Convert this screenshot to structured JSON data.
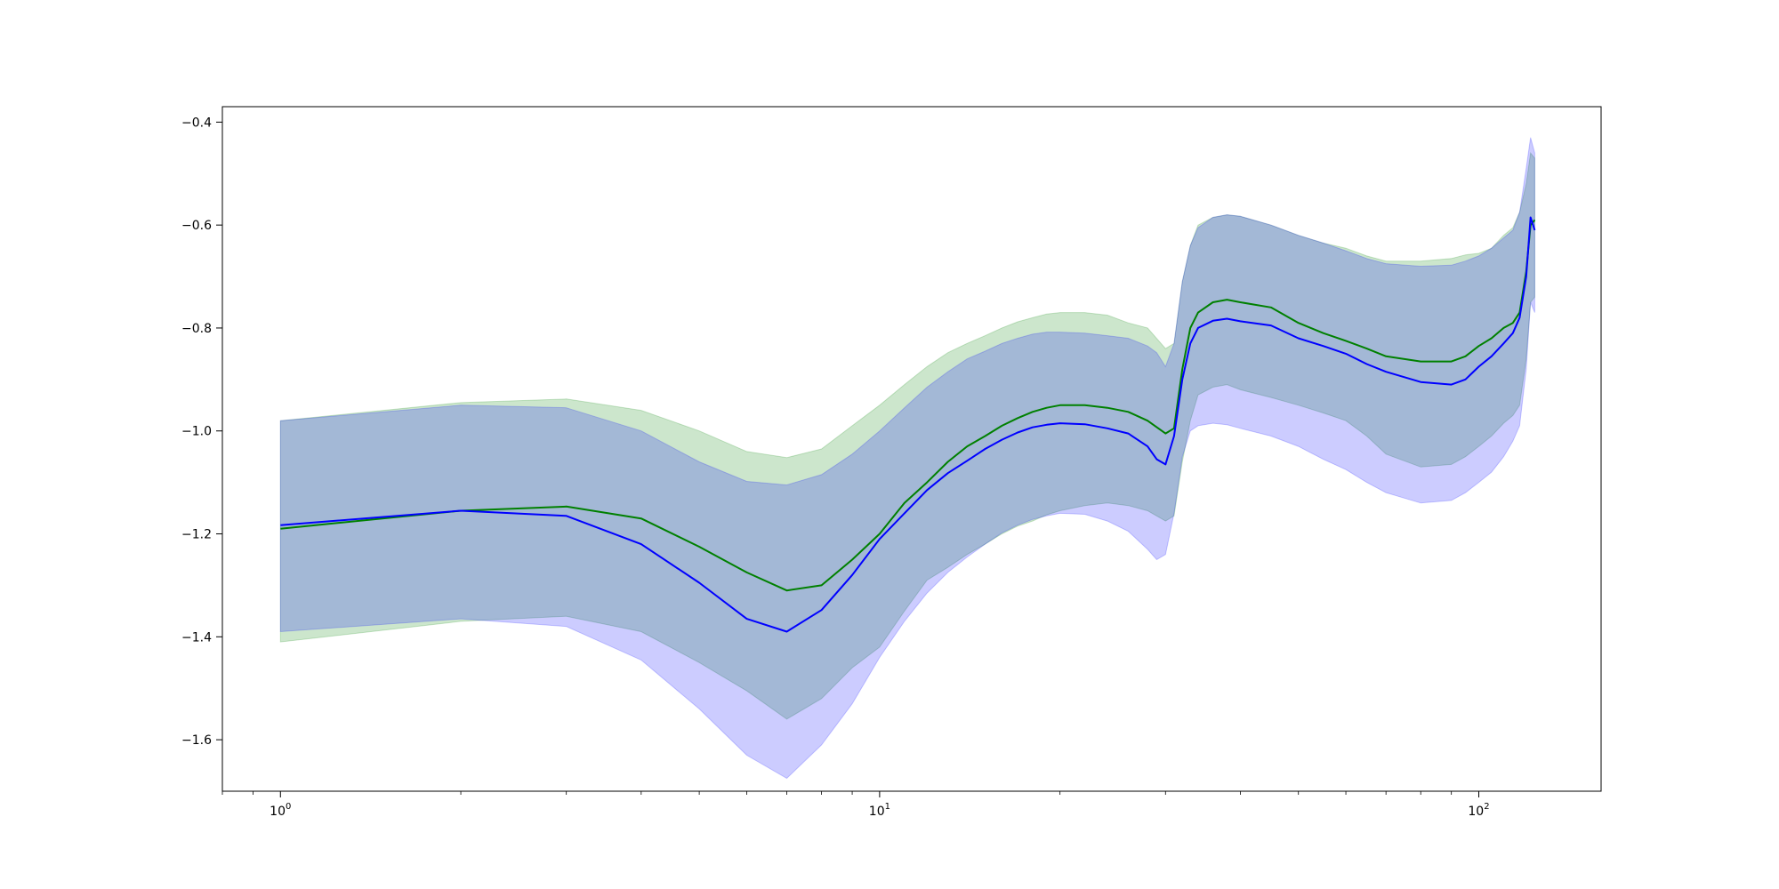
{
  "chart_data": {
    "type": "line",
    "title": "",
    "xlabel": "",
    "ylabel": "",
    "xscale": "log",
    "xlim": [
      0.8,
      160
    ],
    "ylim": [
      -1.7,
      -0.37
    ],
    "grid": false,
    "legend": "none",
    "x_ticks": [
      {
        "base": "10",
        "exp": "0",
        "value": 1
      },
      {
        "base": "10",
        "exp": "1",
        "value": 10
      },
      {
        "base": "10",
        "exp": "2",
        "value": 100
      }
    ],
    "y_ticks": [
      {
        "label": "−0.4",
        "value": -0.4
      },
      {
        "label": "−0.6",
        "value": -0.6
      },
      {
        "label": "−0.8",
        "value": -0.8
      },
      {
        "label": "−1.0",
        "value": -1.0
      },
      {
        "label": "−1.2",
        "value": -1.2
      },
      {
        "label": "−1.4",
        "value": -1.4
      },
      {
        "label": "−1.6",
        "value": -1.6
      }
    ],
    "series": [
      {
        "color": "#008000",
        "fill_color": "#008000",
        "fill_opacity": 0.2,
        "x": [
          1,
          2,
          3,
          4,
          5,
          6,
          7,
          8,
          9,
          10,
          11,
          12,
          13,
          14,
          15,
          16,
          17,
          18,
          19,
          20,
          22,
          24,
          26,
          28,
          30,
          31,
          32,
          33,
          34,
          36,
          38,
          40,
          45,
          50,
          55,
          60,
          65,
          70,
          80,
          90,
          95,
          100,
          105,
          110,
          114,
          117,
          120,
          122,
          124
        ],
        "y": [
          -1.19,
          -1.155,
          -1.147,
          -1.17,
          -1.225,
          -1.275,
          -1.31,
          -1.3,
          -1.25,
          -1.2,
          -1.14,
          -1.1,
          -1.06,
          -1.03,
          -1.01,
          -0.99,
          -0.975,
          -0.963,
          -0.955,
          -0.95,
          -0.95,
          -0.955,
          -0.963,
          -0.98,
          -1.005,
          -0.995,
          -0.88,
          -0.8,
          -0.77,
          -0.75,
          -0.745,
          -0.75,
          -0.76,
          -0.79,
          -0.81,
          -0.825,
          -0.84,
          -0.855,
          -0.865,
          -0.865,
          -0.855,
          -0.835,
          -0.82,
          -0.8,
          -0.79,
          -0.77,
          -0.69,
          -0.6,
          -0.59
        ],
        "upper": [
          -0.98,
          -0.945,
          -0.938,
          -0.96,
          -1.0,
          -1.04,
          -1.052,
          -1.035,
          -0.99,
          -0.95,
          -0.91,
          -0.875,
          -0.848,
          -0.83,
          -0.815,
          -0.8,
          -0.788,
          -0.78,
          -0.773,
          -0.77,
          -0.77,
          -0.775,
          -0.79,
          -0.8,
          -0.84,
          -0.83,
          -0.71,
          -0.64,
          -0.6,
          -0.585,
          -0.58,
          -0.583,
          -0.6,
          -0.62,
          -0.635,
          -0.645,
          -0.66,
          -0.67,
          -0.67,
          -0.665,
          -0.658,
          -0.655,
          -0.645,
          -0.62,
          -0.605,
          -0.575,
          -0.52,
          -0.46,
          -0.47
        ],
        "lower": [
          -1.41,
          -1.37,
          -1.36,
          -1.39,
          -1.45,
          -1.505,
          -1.56,
          -1.52,
          -1.46,
          -1.42,
          -1.35,
          -1.29,
          -1.265,
          -1.24,
          -1.22,
          -1.2,
          -1.185,
          -1.175,
          -1.163,
          -1.155,
          -1.145,
          -1.14,
          -1.145,
          -1.155,
          -1.175,
          -1.165,
          -1.06,
          -0.98,
          -0.93,
          -0.915,
          -0.91,
          -0.92,
          -0.935,
          -0.95,
          -0.965,
          -0.98,
          -1.01,
          -1.045,
          -1.07,
          -1.065,
          -1.05,
          -1.03,
          -1.01,
          -0.985,
          -0.97,
          -0.95,
          -0.86,
          -0.75,
          -0.74
        ]
      },
      {
        "color": "#0000ff",
        "fill_color": "#0000ff",
        "fill_opacity": 0.2,
        "x": [
          1,
          2,
          3,
          4,
          5,
          6,
          7,
          8,
          9,
          10,
          11,
          12,
          13,
          14,
          15,
          16,
          17,
          18,
          19,
          20,
          22,
          24,
          26,
          28,
          29,
          30,
          31,
          32,
          33,
          34,
          36,
          38,
          40,
          45,
          50,
          55,
          60,
          65,
          70,
          80,
          90,
          95,
          100,
          105,
          110,
          114,
          117,
          120,
          122,
          124
        ],
        "y": [
          -1.183,
          -1.155,
          -1.165,
          -1.22,
          -1.295,
          -1.365,
          -1.39,
          -1.348,
          -1.28,
          -1.21,
          -1.16,
          -1.115,
          -1.082,
          -1.058,
          -1.035,
          -1.017,
          -1.003,
          -0.993,
          -0.988,
          -0.985,
          -0.987,
          -0.995,
          -1.005,
          -1.03,
          -1.055,
          -1.065,
          -1.01,
          -0.9,
          -0.83,
          -0.8,
          -0.786,
          -0.782,
          -0.787,
          -0.795,
          -0.82,
          -0.835,
          -0.85,
          -0.87,
          -0.885,
          -0.905,
          -0.91,
          -0.9,
          -0.875,
          -0.855,
          -0.83,
          -0.81,
          -0.78,
          -0.7,
          -0.585,
          -0.61
        ],
        "upper": [
          -0.98,
          -0.95,
          -0.955,
          -1.0,
          -1.06,
          -1.098,
          -1.105,
          -1.085,
          -1.045,
          -1.0,
          -0.955,
          -0.915,
          -0.885,
          -0.86,
          -0.845,
          -0.83,
          -0.82,
          -0.812,
          -0.808,
          -0.808,
          -0.81,
          -0.815,
          -0.82,
          -0.835,
          -0.848,
          -0.875,
          -0.83,
          -0.71,
          -0.64,
          -0.605,
          -0.585,
          -0.58,
          -0.583,
          -0.6,
          -0.62,
          -0.635,
          -0.65,
          -0.665,
          -0.675,
          -0.68,
          -0.678,
          -0.67,
          -0.66,
          -0.645,
          -0.625,
          -0.61,
          -0.575,
          -0.49,
          -0.43,
          -0.46
        ],
        "lower": [
          -1.39,
          -1.365,
          -1.38,
          -1.445,
          -1.54,
          -1.63,
          -1.675,
          -1.61,
          -1.53,
          -1.44,
          -1.37,
          -1.315,
          -1.275,
          -1.245,
          -1.22,
          -1.198,
          -1.183,
          -1.172,
          -1.165,
          -1.16,
          -1.162,
          -1.175,
          -1.195,
          -1.23,
          -1.25,
          -1.24,
          -1.16,
          -1.05,
          -1.0,
          -0.99,
          -0.985,
          -0.988,
          -0.995,
          -1.01,
          -1.03,
          -1.055,
          -1.075,
          -1.1,
          -1.12,
          -1.14,
          -1.135,
          -1.12,
          -1.1,
          -1.08,
          -1.05,
          -1.02,
          -0.99,
          -0.88,
          -0.75,
          -0.77
        ]
      }
    ]
  }
}
